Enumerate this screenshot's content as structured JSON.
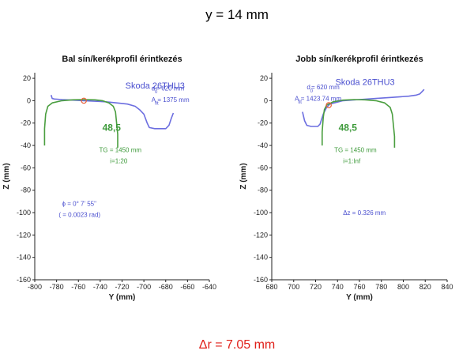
{
  "title": "y = 14 mm",
  "footer": "Δr = 7.05 mm",
  "colors": {
    "wheel": "#6c6ee0",
    "rail": "#4a9e3f",
    "contact": "#e8603a",
    "footer": "#e0211b"
  },
  "chart_data": [
    {
      "type": "line",
      "title": "Bal sín/kerékprofil érintkezés",
      "xlabel": "Y (mm)",
      "ylabel": "Z (mm)",
      "xlim": [
        -800,
        -640
      ],
      "ylim": [
        -160,
        25
      ],
      "xticks": [
        -800,
        -780,
        -760,
        -740,
        -720,
        -700,
        -680,
        -660,
        -640
      ],
      "yticks": [
        20,
        0,
        -20,
        -40,
        -60,
        -80,
        -100,
        -120,
        -140,
        -160
      ],
      "grid": false,
      "series": [
        {
          "name": "Skoda 26THU3",
          "color": "#6c6ee0",
          "points": [
            [
              -785,
              5
            ],
            [
              -784,
              2
            ],
            [
              -782,
              1.5
            ],
            [
              -775,
              1
            ],
            [
              -765,
              0.5
            ],
            [
              -755,
              0
            ],
            [
              -745,
              -0.5
            ],
            [
              -735,
              -1
            ],
            [
              -725,
              -2
            ],
            [
              -715,
              -3
            ],
            [
              -708,
              -5
            ],
            [
              -704,
              -8
            ],
            [
              -700,
              -12
            ],
            [
              -697,
              -20
            ],
            [
              -695,
              -24
            ],
            [
              -690,
              -25
            ],
            [
              -680,
              -25
            ],
            [
              -677,
              -22
            ],
            [
              -675,
              -16
            ],
            [
              -673,
              -11
            ]
          ]
        },
        {
          "name": "48,5",
          "color": "#4a9e3f",
          "points": [
            [
              -791,
              -40
            ],
            [
              -791,
              -25
            ],
            [
              -790,
              -12
            ],
            [
              -788,
              -5
            ],
            [
              -784,
              -2
            ],
            [
              -775,
              0
            ],
            [
              -765,
              0.8
            ],
            [
              -755,
              1
            ],
            [
              -745,
              0.8
            ],
            [
              -738,
              0
            ],
            [
              -732,
              -2
            ],
            [
              -728,
              -5
            ],
            [
              -726,
              -10
            ],
            [
              -725,
              -20
            ],
            [
              -724,
              -30
            ],
            [
              -724,
              -42
            ]
          ]
        }
      ],
      "contact": {
        "x": -755,
        "y": 0
      },
      "annotations": [
        {
          "text": "Skoda 26THU3",
          "x": -717,
          "y": 11,
          "color": "blue",
          "size": 11
        },
        {
          "text": "d",
          "x": -693,
          "y": 9,
          "color": "blue",
          "size": 8
        },
        {
          "text": "0",
          "x": -690,
          "y": 6.5,
          "color": "blue",
          "size": 6
        },
        {
          "text": " = 620 mm",
          "x": -689,
          "y": 9,
          "color": "blue",
          "size": 8
        },
        {
          "text": "A",
          "x": -693,
          "y": -1,
          "color": "blue",
          "size": 8
        },
        {
          "text": "fit",
          "x": -690,
          "y": -3.5,
          "color": "blue",
          "size": 6
        },
        {
          "text": " = 1375 mm",
          "x": -687.5,
          "y": -1,
          "color": "blue",
          "size": 8
        },
        {
          "text": "48,5",
          "x": -738,
          "y": -27,
          "color": "green",
          "size": 12,
          "bold": true
        },
        {
          "text": "TG = 1450 mm",
          "x": -741,
          "y": -46,
          "color": "green",
          "size": 8
        },
        {
          "text": "i=1:20",
          "x": -731,
          "y": -56,
          "color": "green",
          "size": 8
        },
        {
          "text": "ϕ = 0° 7' 55\"",
          "x": -775,
          "y": -94,
          "color": "blue",
          "size": 8
        },
        {
          "text": "( = 0.0023 rad)",
          "x": -778,
          "y": -104,
          "color": "blue",
          "size": 8
        }
      ]
    },
    {
      "type": "line",
      "title": "Jobb sín/kerékprofil érintkezés",
      "xlabel": "Y (mm)",
      "ylabel": "Z (mm)",
      "xlim": [
        680,
        840
      ],
      "ylim": [
        -160,
        25
      ],
      "xticks": [
        680,
        700,
        720,
        740,
        760,
        780,
        800,
        820,
        840
      ],
      "yticks": [
        20,
        0,
        -20,
        -40,
        -60,
        -80,
        -100,
        -120,
        -140,
        -160
      ],
      "grid": false,
      "series": [
        {
          "name": "Skoda 26THU3",
          "color": "#6c6ee0",
          "points": [
            [
              708,
              -10
            ],
            [
              710,
              -18
            ],
            [
              712,
              -22
            ],
            [
              716,
              -23
            ],
            [
              722,
              -23
            ],
            [
              724,
              -21
            ],
            [
              727,
              -12
            ],
            [
              730,
              -6
            ],
            [
              733,
              -3
            ],
            [
              745,
              0
            ],
            [
              760,
              1
            ],
            [
              775,
              2
            ],
            [
              790,
              3
            ],
            [
              805,
              4
            ],
            [
              812,
              5
            ],
            [
              815,
              6
            ],
            [
              817,
              8
            ],
            [
              819,
              10
            ]
          ]
        },
        {
          "name": "48,5",
          "color": "#4a9e3f",
          "points": [
            [
              726,
              -40
            ],
            [
              726,
              -28
            ],
            [
              727,
              -15
            ],
            [
              728,
              -8
            ],
            [
              730,
              -4
            ],
            [
              736,
              -1
            ],
            [
              745,
              0.5
            ],
            [
              755,
              1
            ],
            [
              765,
              0.8
            ],
            [
              775,
              0
            ],
            [
              783,
              -2
            ],
            [
              788,
              -6
            ],
            [
              790,
              -12
            ],
            [
              791,
              -22
            ],
            [
              792,
              -32
            ],
            [
              792,
              -42
            ]
          ]
        }
      ],
      "contact": {
        "x": 732,
        "y": -4
      },
      "annotations": [
        {
          "text": "Skoda 26THU3",
          "x": 738,
          "y": 14,
          "color": "blue",
          "size": 11
        },
        {
          "text": "d",
          "x": 712,
          "y": 10,
          "color": "blue",
          "size": 8
        },
        {
          "text": "0",
          "x": 715,
          "y": 7.5,
          "color": "blue",
          "size": 6
        },
        {
          "text": " = 620 mm",
          "x": 716,
          "y": 10,
          "color": "blue",
          "size": 8
        },
        {
          "text": "A",
          "x": 701,
          "y": 0,
          "color": "blue",
          "size": 8
        },
        {
          "text": "fit",
          "x": 704,
          "y": -2.5,
          "color": "blue",
          "size": 6
        },
        {
          "text": " = 1423.74 mm",
          "x": 706.5,
          "y": 0,
          "color": "blue",
          "size": 8
        },
        {
          "text": "48,5",
          "x": 741,
          "y": -27,
          "color": "green",
          "size": 12,
          "bold": true
        },
        {
          "text": "TG = 1450 mm",
          "x": 737,
          "y": -46,
          "color": "green",
          "size": 8
        },
        {
          "text": "i=1:Inf",
          "x": 745,
          "y": -56,
          "color": "green",
          "size": 8
        },
        {
          "text": "Δz = 0.326 mm",
          "x": 745,
          "y": -102,
          "color": "blue",
          "size": 8
        }
      ]
    }
  ]
}
